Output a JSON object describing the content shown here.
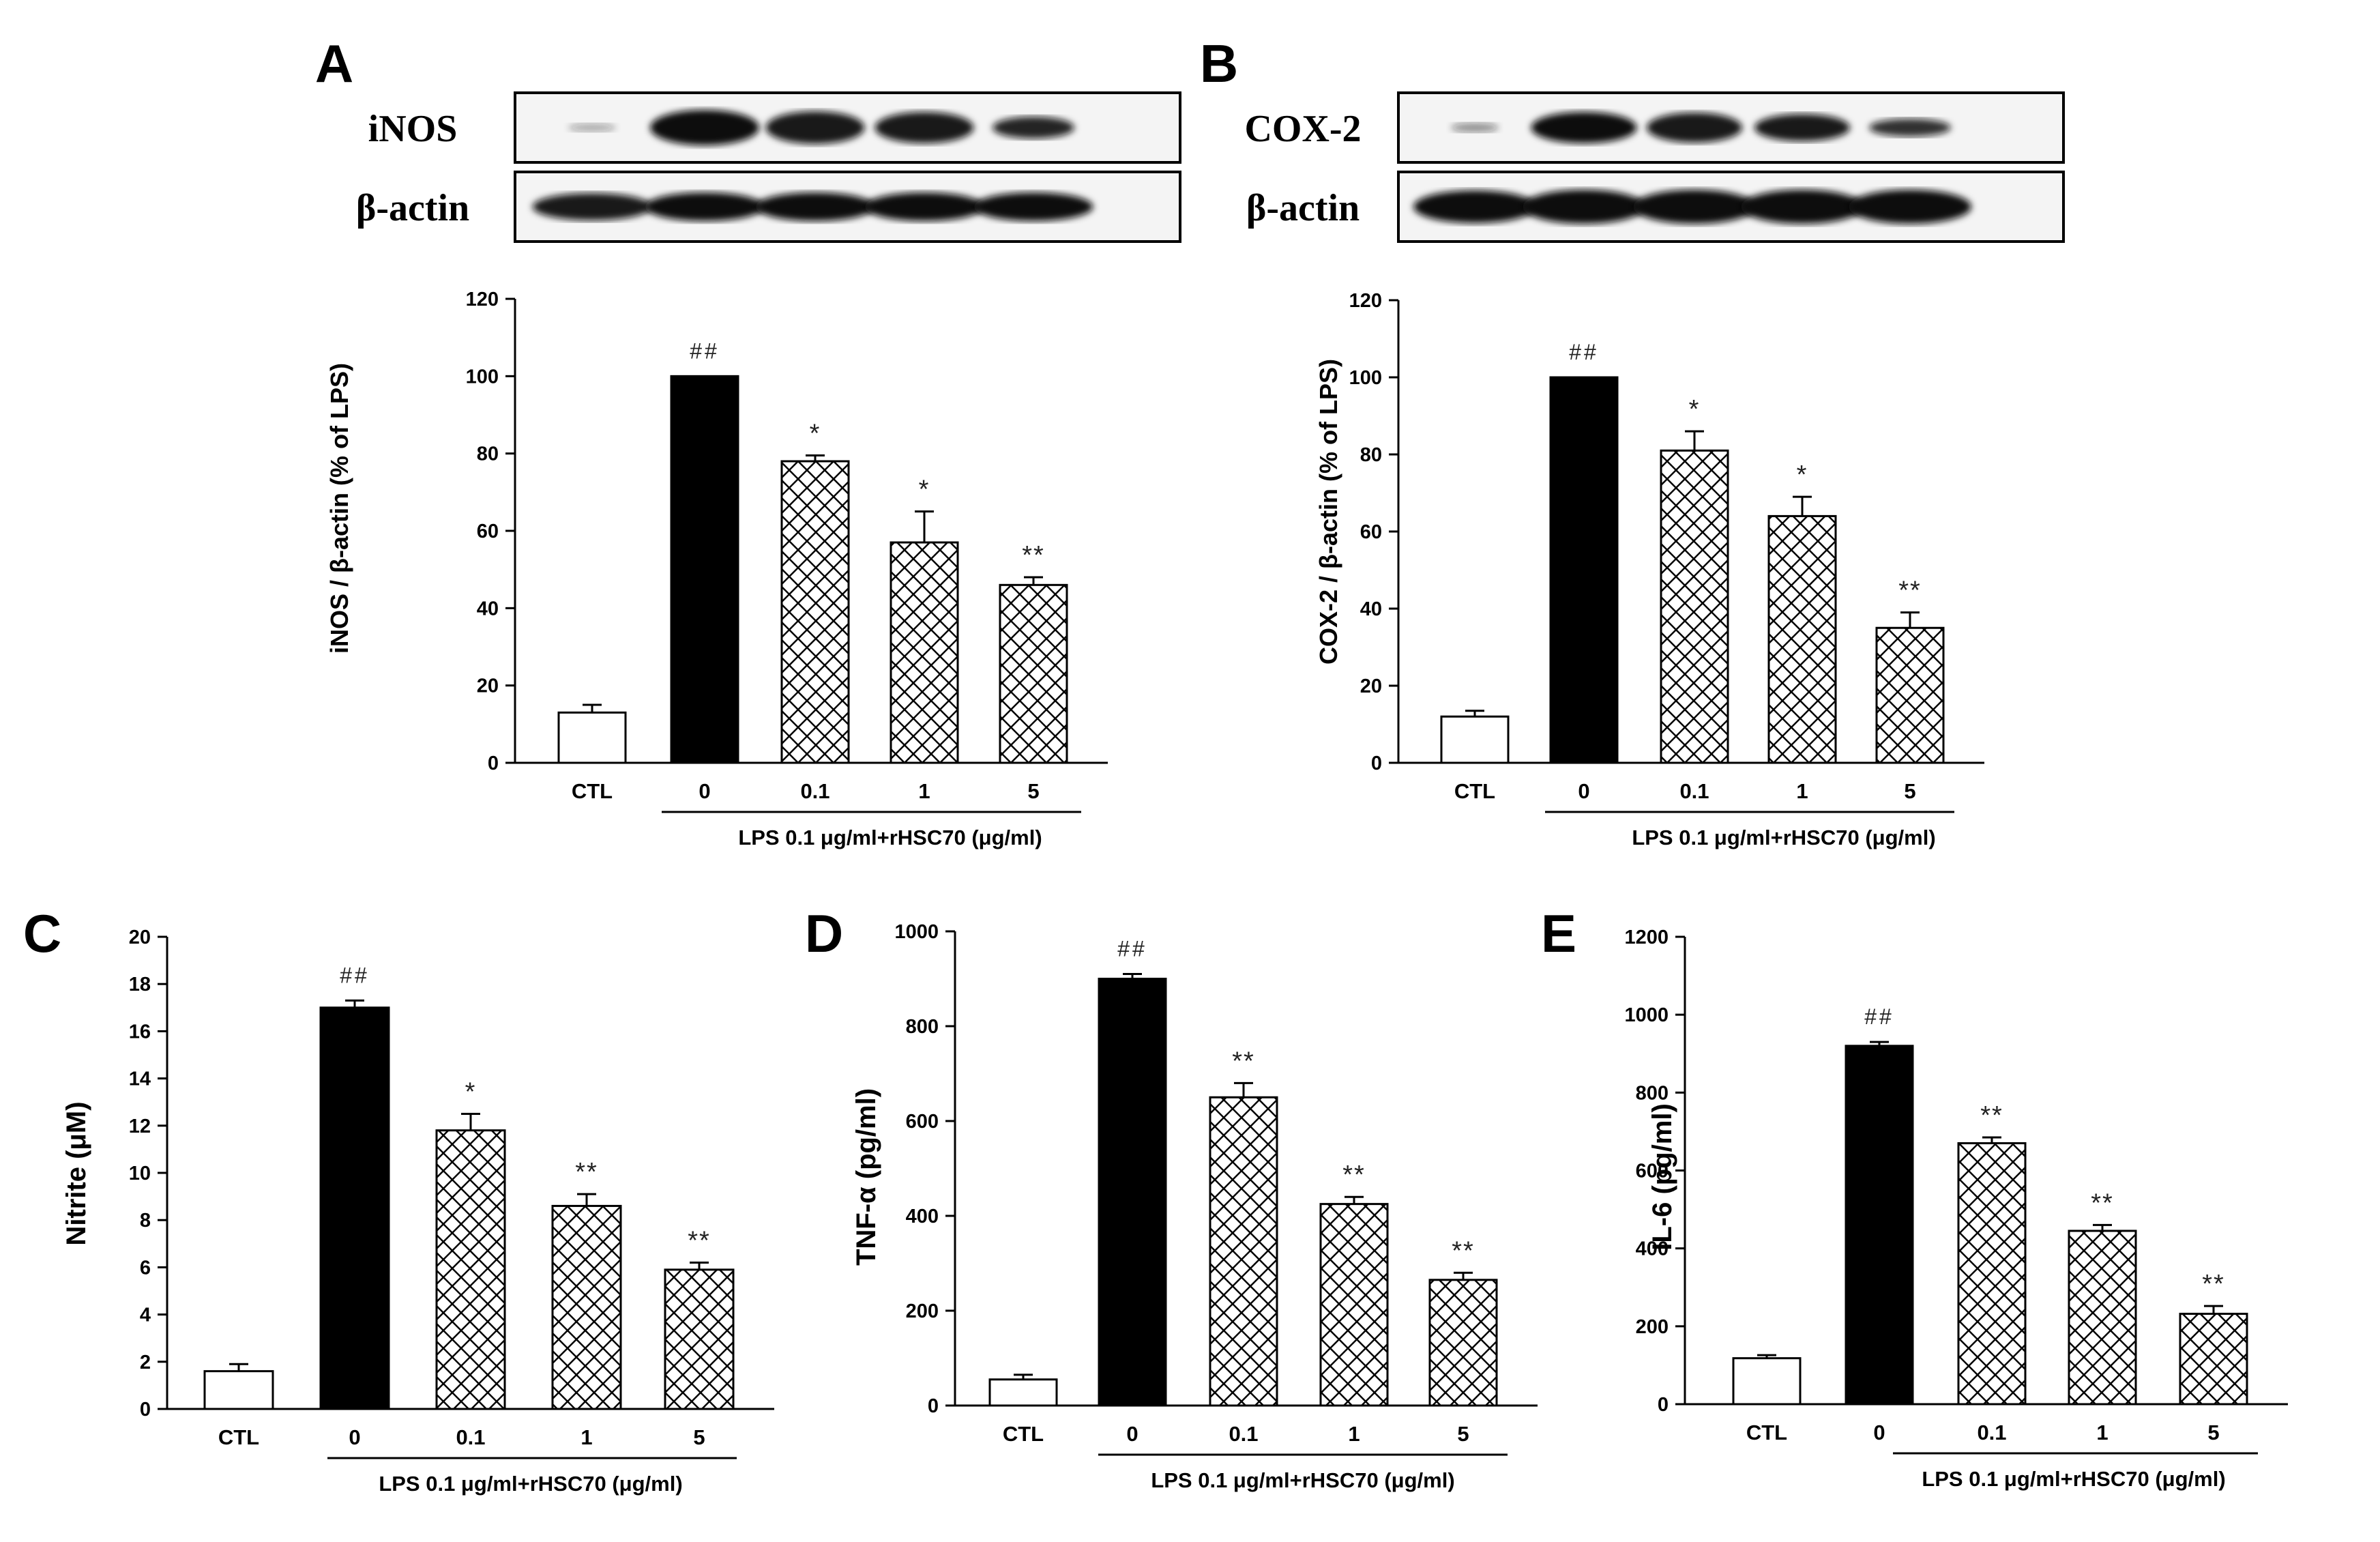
{
  "colors": {
    "ctl_bar": "#ffffff",
    "lps_bar": "#000000",
    "hatched_bar": "#ffffff",
    "axis": "#000000",
    "band": "#111111"
  },
  "blots": [
    {
      "panel": "A",
      "protein_label": "iNOS",
      "control_label": "β-actin"
    },
    {
      "panel": "B",
      "protein_label": "COX-2",
      "control_label": "β-actin"
    }
  ],
  "chart_data": [
    {
      "panel": "A",
      "type": "bar",
      "categories": [
        "CTL",
        "0",
        "0.1",
        "1",
        "5"
      ],
      "values": [
        13,
        100,
        78,
        57,
        46
      ],
      "errors": [
        2,
        0,
        1.5,
        8,
        2
      ],
      "significance": [
        "",
        "##",
        "*",
        "*",
        "**"
      ],
      "ylabel": "iNOS / β-actin (% of LPS)",
      "xlabel": "LPS 0.1 μg/ml+rHSC70 (μg/ml)",
      "ylim": [
        0,
        120
      ],
      "yticks": [
        0,
        20,
        40,
        60,
        80,
        100,
        120
      ]
    },
    {
      "panel": "B",
      "type": "bar",
      "categories": [
        "CTL",
        "0",
        "0.1",
        "1",
        "5"
      ],
      "values": [
        12,
        100,
        81,
        64,
        35
      ],
      "errors": [
        1.5,
        0,
        5,
        5,
        4
      ],
      "significance": [
        "",
        "##",
        "*",
        "*",
        "**"
      ],
      "ylabel": "COX-2 / β-actin (% of LPS)",
      "xlabel": "LPS 0.1 μg/ml+rHSC70 (μg/ml)",
      "ylim": [
        0,
        120
      ],
      "yticks": [
        0,
        20,
        40,
        60,
        80,
        100,
        120
      ]
    },
    {
      "panel": "C",
      "type": "bar",
      "categories": [
        "CTL",
        "0",
        "0.1",
        "1",
        "5"
      ],
      "values": [
        1.6,
        17,
        11.8,
        8.6,
        5.9
      ],
      "errors": [
        0.3,
        0.3,
        0.7,
        0.5,
        0.3
      ],
      "significance": [
        "",
        "##",
        "*",
        "**",
        "**"
      ],
      "ylabel": "Nitrite (μM)",
      "xlabel": "LPS 0.1 μg/ml+rHSC70 (μg/ml)",
      "ylim": [
        0,
        20
      ],
      "yticks": [
        0,
        2,
        4,
        6,
        8,
        10,
        12,
        14,
        16,
        18,
        20
      ]
    },
    {
      "panel": "D",
      "type": "bar",
      "categories": [
        "CTL",
        "0",
        "0.1",
        "1",
        "5"
      ],
      "values": [
        55,
        900,
        650,
        425,
        265
      ],
      "errors": [
        10,
        10,
        30,
        15,
        15
      ],
      "significance": [
        "",
        "##",
        "**",
        "**",
        "**"
      ],
      "ylabel": "TNF-α (pg/ml)",
      "xlabel": "LPS 0.1 μg/ml+rHSC70 (μg/ml)",
      "ylim": [
        0,
        1000
      ],
      "yticks": [
        0,
        200,
        400,
        600,
        800,
        1000
      ]
    },
    {
      "panel": "E",
      "type": "bar",
      "categories": [
        "CTL",
        "0",
        "0.1",
        "1",
        "5"
      ],
      "values": [
        118,
        920,
        670,
        445,
        232
      ],
      "errors": [
        8,
        10,
        15,
        15,
        20
      ],
      "significance": [
        "",
        "##",
        "**",
        "**",
        "**"
      ],
      "ylabel": "IL-6 (pg/ml)",
      "xlabel": "LPS 0.1 μg/ml+rHSC70 (μg/ml)",
      "ylim": [
        0,
        1200
      ],
      "yticks": [
        0,
        200,
        400,
        600,
        800,
        1000,
        1200
      ]
    }
  ]
}
